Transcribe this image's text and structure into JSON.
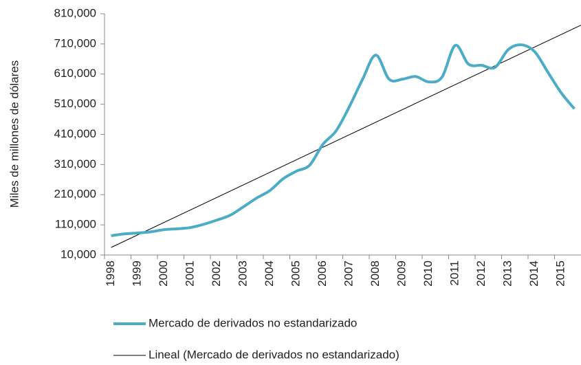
{
  "chart_data": {
    "type": "line",
    "y_label": "Miles de millones de dólares",
    "categories": [
      "1998",
      null,
      "1999",
      null,
      "2000",
      null,
      "2001",
      null,
      "2002",
      null,
      "2003",
      null,
      "2004",
      null,
      "2005",
      null,
      "2006",
      null,
      "2007",
      null,
      "2008",
      null,
      "2009",
      null,
      "2010",
      null,
      "2011",
      null,
      "2012",
      null,
      "2013",
      null,
      "2014",
      null,
      "2015",
      null
    ],
    "series": [
      {
        "name": "Mercado de derivados no estandarizado",
        "color": "#4bacc6",
        "values": [
          74000,
          80000,
          83000,
          87000,
          94000,
          97000,
          101000,
          112000,
          126000,
          142000,
          170000,
          199000,
          224000,
          263000,
          288000,
          308000,
          377000,
          422000,
          502000,
          593000,
          673000,
          593000,
          593000,
          602000,
          584000,
          600000,
          705000,
          643000,
          639000,
          632000,
          691000,
          707000,
          684000,
          616000,
          548000,
          495000
        ]
      }
    ],
    "trendline": {
      "name": "Lineal (Mercado de derivados no estandarizado)",
      "type": "linear",
      "color": "#000000"
    },
    "ylim": [
      10000,
      810000
    ],
    "yticks": [
      {
        "value": 10000,
        "label": "10,000"
      },
      {
        "value": 110000,
        "label": "110,000"
      },
      {
        "value": 210000,
        "label": "210,000"
      },
      {
        "value": 310000,
        "label": "310,000"
      },
      {
        "value": 410000,
        "label": "410,000"
      },
      {
        "value": 510000,
        "label": "510,000"
      },
      {
        "value": 610000,
        "label": "610,000"
      },
      {
        "value": 710000,
        "label": "710,000"
      },
      {
        "value": 810000,
        "label": "810,000"
      }
    ],
    "legend": "bottom"
  }
}
